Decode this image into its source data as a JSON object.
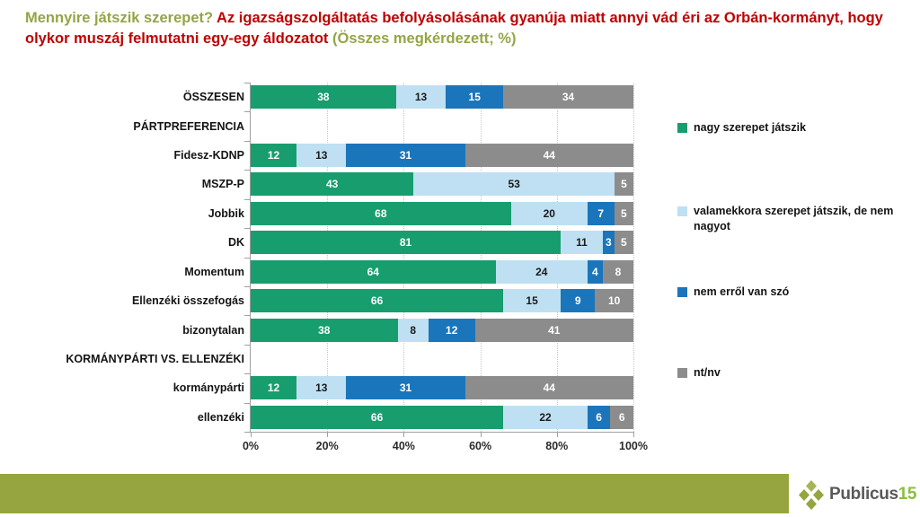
{
  "title": {
    "question": "Mennyire játszik szerepet?",
    "statement": " Az igazságszolgáltatás befolyásolásának gyanúja miatt annyi vád éri az Orbán-kormányt, hogy olykor muszáj felmutatni egy-egy áldozatot ",
    "suffix": "(Összes megkérdezett; %)",
    "question_color": "#94A545",
    "statement_color": "#C00000"
  },
  "chart_data": {
    "type": "bar",
    "orientation": "horizontal",
    "stacked": true,
    "unit": "%",
    "x_axis": {
      "range": [
        0,
        100
      ],
      "tick_values": [
        0,
        20,
        40,
        60,
        80,
        100
      ],
      "tick_labels": [
        "0%",
        "20%",
        "40%",
        "60%",
        "80%",
        "100%"
      ],
      "gridlines": "dotted-vertical"
    },
    "legend_position": "right",
    "legend": [
      {
        "label": "nagy szerepet játszik",
        "color": "#189D6F"
      },
      {
        "label": "valamekkora szerepet játszik, de nem nagyot",
        "color": "#BFE0F2"
      },
      {
        "label": "nem erről van szó",
        "color": "#1B75BB"
      },
      {
        "label": "nt/nv",
        "color": "#8C8C8C"
      }
    ],
    "rows": [
      {
        "label": "ÖSSZESEN",
        "section_header": false,
        "values": [
          38,
          13,
          15,
          34
        ]
      },
      {
        "label": "PÁRTPREFERENCIA",
        "section_header": true,
        "values": null
      },
      {
        "label": "Fidesz-KDNP",
        "section_header": false,
        "values": [
          12,
          13,
          31,
          44
        ]
      },
      {
        "label": "MSZP-P",
        "section_header": false,
        "values": [
          43,
          53,
          0,
          5
        ]
      },
      {
        "label": "Jobbik",
        "section_header": false,
        "values": [
          68,
          20,
          7,
          5
        ]
      },
      {
        "label": "DK",
        "section_header": false,
        "values": [
          81,
          11,
          3,
          5
        ]
      },
      {
        "label": "Momentum",
        "section_header": false,
        "values": [
          64,
          24,
          4,
          8
        ]
      },
      {
        "label": "Ellenzéki összefogás",
        "section_header": false,
        "values": [
          66,
          15,
          9,
          10
        ]
      },
      {
        "label": "bizonytalan",
        "section_header": false,
        "values": [
          38,
          8,
          12,
          41
        ]
      },
      {
        "label": "KORMÁNYPÁRTI VS. ELLENZÉKI",
        "section_header": true,
        "values": null
      },
      {
        "label": "kormánypárti",
        "section_header": false,
        "values": [
          12,
          13,
          31,
          44
        ]
      },
      {
        "label": "ellenzéki",
        "section_header": false,
        "values": [
          66,
          22,
          6,
          6
        ]
      }
    ]
  },
  "footer": {
    "band_color": "#96A53F",
    "logo_text": "Publicus",
    "logo_number": "15",
    "logo_text_color": "#58595B",
    "logo_number_color": "#8ABF3E"
  }
}
